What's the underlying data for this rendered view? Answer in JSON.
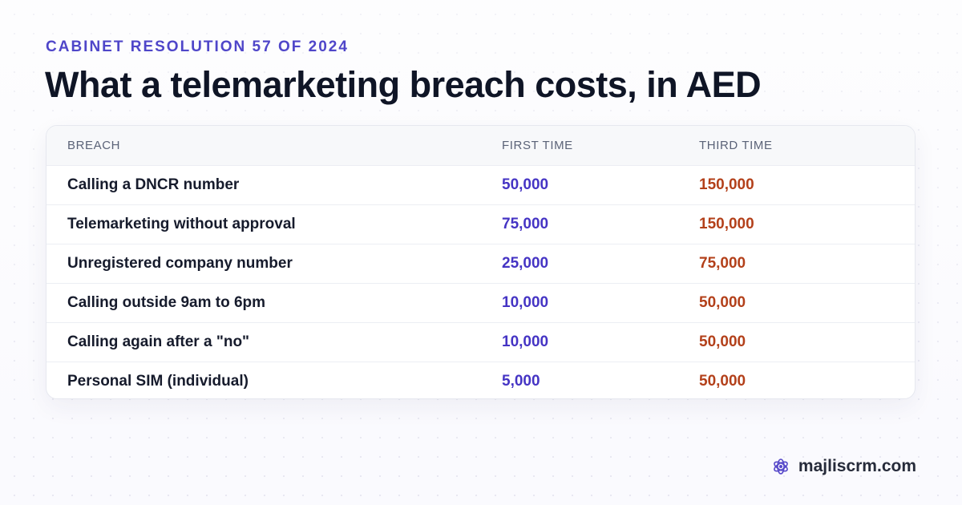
{
  "eyebrow": "CABINET RESOLUTION 57 OF 2024",
  "headline": "What a telemarketing breach costs, in AED",
  "table": {
    "headers": [
      "BREACH",
      "FIRST TIME",
      "THIRD TIME"
    ],
    "rows": [
      [
        "Calling a DNCR number",
        "50,000",
        "150,000"
      ],
      [
        "Telemarketing without approval",
        "75,000",
        "150,000"
      ],
      [
        "Unregistered company number",
        "25,000",
        "75,000"
      ],
      [
        "Calling outside 9am to 6pm",
        "10,000",
        "50,000"
      ],
      [
        "Calling again after a \"no\"",
        "10,000",
        "50,000"
      ],
      [
        "Personal SIM (individual)",
        "5,000",
        "50,000"
      ]
    ]
  },
  "brand": {
    "icon": "atom-flower-icon",
    "text": "majliscrm.com"
  },
  "colors": {
    "accent": "#4f46c9",
    "first_time": "#4534c4",
    "third_time": "#b3401a",
    "headline": "#0f1526"
  }
}
